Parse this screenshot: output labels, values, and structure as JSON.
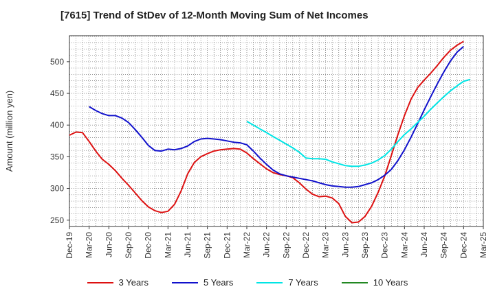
{
  "chart_data": {
    "type": "line",
    "title": "[7615]  Trend of StDev of 12-Month Moving Sum of Net Incomes",
    "xlabel": "",
    "ylabel": "Amount (million yen)",
    "x_ticks": [
      "Dec-19",
      "Mar-20",
      "Jun-20",
      "Sep-20",
      "Dec-20",
      "Mar-21",
      "Jun-21",
      "Sep-21",
      "Dec-21",
      "Mar-22",
      "Jun-22",
      "Sep-22",
      "Dec-22",
      "Mar-23",
      "Jun-23",
      "Sep-23",
      "Dec-23",
      "Mar-24",
      "Jun-24",
      "Sep-24",
      "Dec-24",
      "Mar-25"
    ],
    "y_ticks": [
      250,
      300,
      350,
      400,
      450,
      500
    ],
    "ylim": [
      240,
      541
    ],
    "grid": true,
    "legend_position": "bottom",
    "series": [
      {
        "name": "3 Years",
        "color": "#dd1111",
        "points": [
          [
            "2019-12",
            384
          ],
          [
            "2020-01",
            389
          ],
          [
            "2020-02",
            388
          ],
          [
            "2020-03",
            374
          ],
          [
            "2020-04",
            359
          ],
          [
            "2020-05",
            346
          ],
          [
            "2020-06",
            338
          ],
          [
            "2020-07",
            328
          ],
          [
            "2020-08",
            316
          ],
          [
            "2020-09",
            305
          ],
          [
            "2020-10",
            293
          ],
          [
            "2020-11",
            281
          ],
          [
            "2020-12",
            271
          ],
          [
            "2021-01",
            265
          ],
          [
            "2021-02",
            262
          ],
          [
            "2021-03",
            264
          ],
          [
            "2021-04",
            275
          ],
          [
            "2021-05",
            296
          ],
          [
            "2021-06",
            323
          ],
          [
            "2021-07",
            341
          ],
          [
            "2021-08",
            350
          ],
          [
            "2021-09",
            355
          ],
          [
            "2021-10",
            359
          ],
          [
            "2021-11",
            361
          ],
          [
            "2021-12",
            362
          ],
          [
            "2022-01",
            363
          ],
          [
            "2022-02",
            362
          ],
          [
            "2022-03",
            356
          ],
          [
            "2022-04",
            347
          ],
          [
            "2022-05",
            339
          ],
          [
            "2022-06",
            331
          ],
          [
            "2022-07",
            325
          ],
          [
            "2022-08",
            322
          ],
          [
            "2022-09",
            320
          ],
          [
            "2022-10",
            317
          ],
          [
            "2022-11",
            309
          ],
          [
            "2022-12",
            299
          ],
          [
            "2023-01",
            291
          ],
          [
            "2023-02",
            287
          ],
          [
            "2023-03",
            288
          ],
          [
            "2023-04",
            285
          ],
          [
            "2023-05",
            276
          ],
          [
            "2023-06",
            256
          ],
          [
            "2023-07",
            246
          ],
          [
            "2023-08",
            247
          ],
          [
            "2023-09",
            256
          ],
          [
            "2023-10",
            272
          ],
          [
            "2023-11",
            294
          ],
          [
            "2023-12",
            320
          ],
          [
            "2024-01",
            352
          ],
          [
            "2024-02",
            385
          ],
          [
            "2024-03",
            415
          ],
          [
            "2024-04",
            441
          ],
          [
            "2024-05",
            459
          ],
          [
            "2024-06",
            471
          ],
          [
            "2024-07",
            482
          ],
          [
            "2024-08",
            494
          ],
          [
            "2024-09",
            507
          ],
          [
            "2024-10",
            518
          ],
          [
            "2024-11",
            526
          ],
          [
            "2024-12",
            532
          ]
        ]
      },
      {
        "name": "5 Years",
        "color": "#1111cc",
        "points": [
          [
            "2020-03",
            429
          ],
          [
            "2020-04",
            423
          ],
          [
            "2020-05",
            418
          ],
          [
            "2020-06",
            415
          ],
          [
            "2020-07",
            415
          ],
          [
            "2020-08",
            411
          ],
          [
            "2020-09",
            404
          ],
          [
            "2020-10",
            393
          ],
          [
            "2020-11",
            381
          ],
          [
            "2020-12",
            368
          ],
          [
            "2021-01",
            360
          ],
          [
            "2021-02",
            359
          ],
          [
            "2021-03",
            362
          ],
          [
            "2021-04",
            361
          ],
          [
            "2021-05",
            363
          ],
          [
            "2021-06",
            367
          ],
          [
            "2021-07",
            374
          ],
          [
            "2021-08",
            378
          ],
          [
            "2021-09",
            379
          ],
          [
            "2021-10",
            378
          ],
          [
            "2021-11",
            377
          ],
          [
            "2021-12",
            375
          ],
          [
            "2022-01",
            373
          ],
          [
            "2022-02",
            372
          ],
          [
            "2022-03",
            369
          ],
          [
            "2022-04",
            359
          ],
          [
            "2022-05",
            348
          ],
          [
            "2022-06",
            338
          ],
          [
            "2022-07",
            329
          ],
          [
            "2022-08",
            323
          ],
          [
            "2022-09",
            320
          ],
          [
            "2022-10",
            318
          ],
          [
            "2022-11",
            316
          ],
          [
            "2022-12",
            314
          ],
          [
            "2023-01",
            312
          ],
          [
            "2023-02",
            309
          ],
          [
            "2023-03",
            306
          ],
          [
            "2023-04",
            304
          ],
          [
            "2023-05",
            303
          ],
          [
            "2023-06",
            302
          ],
          [
            "2023-07",
            302
          ],
          [
            "2023-08",
            303
          ],
          [
            "2023-09",
            306
          ],
          [
            "2023-10",
            309
          ],
          [
            "2023-11",
            314
          ],
          [
            "2023-12",
            321
          ],
          [
            "2024-01",
            330
          ],
          [
            "2024-02",
            344
          ],
          [
            "2024-03",
            361
          ],
          [
            "2024-04",
            381
          ],
          [
            "2024-05",
            402
          ],
          [
            "2024-06",
            424
          ],
          [
            "2024-07",
            445
          ],
          [
            "2024-08",
            465
          ],
          [
            "2024-09",
            484
          ],
          [
            "2024-10",
            501
          ],
          [
            "2024-11",
            515
          ],
          [
            "2024-12",
            524
          ]
        ]
      },
      {
        "name": "7 Years",
        "color": "#00e5e5",
        "points": [
          [
            "2022-03",
            406
          ],
          [
            "2022-04",
            400
          ],
          [
            "2022-05",
            394
          ],
          [
            "2022-06",
            388
          ],
          [
            "2022-07",
            382
          ],
          [
            "2022-08",
            376
          ],
          [
            "2022-09",
            370
          ],
          [
            "2022-10",
            364
          ],
          [
            "2022-11",
            357
          ],
          [
            "2022-12",
            348
          ],
          [
            "2023-01",
            347
          ],
          [
            "2023-02",
            347
          ],
          [
            "2023-03",
            346
          ],
          [
            "2023-04",
            342
          ],
          [
            "2023-05",
            339
          ],
          [
            "2023-06",
            336
          ],
          [
            "2023-07",
            335
          ],
          [
            "2023-08",
            335
          ],
          [
            "2023-09",
            337
          ],
          [
            "2023-10",
            340
          ],
          [
            "2023-11",
            345
          ],
          [
            "2023-12",
            352
          ],
          [
            "2024-01",
            362
          ],
          [
            "2024-02",
            374
          ],
          [
            "2024-03",
            385
          ],
          [
            "2024-04",
            394
          ],
          [
            "2024-05",
            404
          ],
          [
            "2024-06",
            414
          ],
          [
            "2024-07",
            425
          ],
          [
            "2024-08",
            435
          ],
          [
            "2024-09",
            445
          ],
          [
            "2024-10",
            454
          ],
          [
            "2024-11",
            462
          ],
          [
            "2024-12",
            469
          ],
          [
            "2025-01",
            472
          ]
        ]
      },
      {
        "name": "10 Years",
        "color": "#228822",
        "points": []
      }
    ]
  }
}
